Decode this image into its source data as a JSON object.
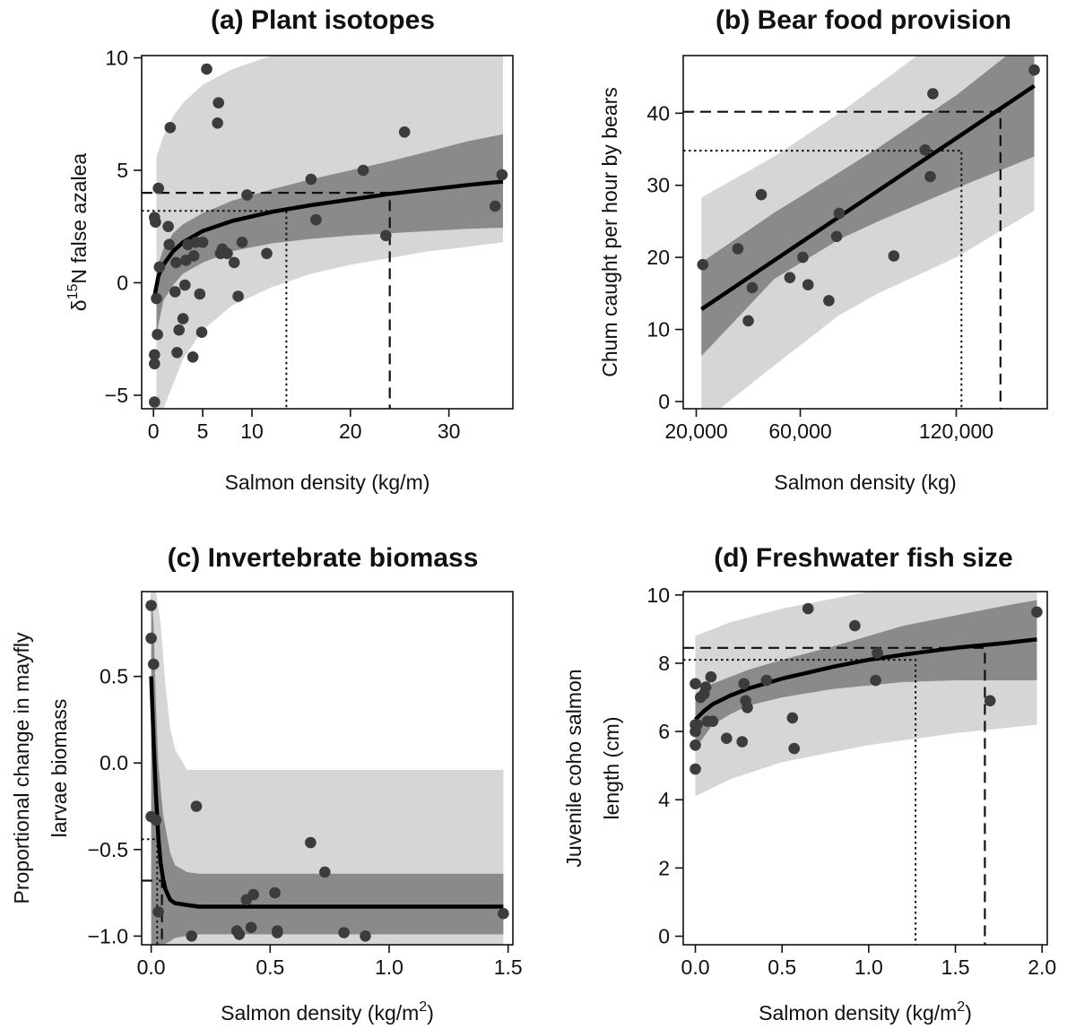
{
  "figure": {
    "background": "#ffffff",
    "colors": {
      "outer_band": "#d6d6d6",
      "inner_band": "#8a8a8a",
      "fit_line": "#000000",
      "points": "#3c3c3c"
    }
  },
  "chart_data": [
    {
      "type": "scatter",
      "panel": "a",
      "title": "(a) Plant isotopes",
      "xlabel": "Salmon density (kg/m)",
      "ylabel": "δ15N false azalea",
      "ylabel_parts": [
        "δ",
        "15",
        "N false azalea"
      ],
      "xlim": [
        -1.2,
        36.5
      ],
      "ylim": [
        -5.6,
        10.1
      ],
      "x_ticks": [
        0,
        5,
        10,
        20,
        30
      ],
      "y_ticks": [
        -5,
        0,
        5,
        10
      ],
      "grid": false,
      "fit": {
        "model": "a + b*log(x)",
        "x": [
          0.1,
          0.5,
          1,
          2,
          3,
          5,
          8,
          12,
          16,
          20,
          24,
          28,
          32,
          35.5
        ],
        "y": [
          -0.6,
          0.3,
          0.8,
          1.4,
          1.8,
          2.3,
          2.75,
          3.15,
          3.45,
          3.7,
          3.95,
          4.15,
          4.35,
          4.5
        ]
      },
      "inner_band": {
        "x": [
          0.3,
          1,
          2,
          3,
          5,
          8,
          12,
          16,
          20,
          24,
          28,
          32,
          35.5
        ],
        "lower": [
          -2.3,
          -0.8,
          -0.1,
          0.4,
          0.9,
          1.4,
          1.75,
          1.95,
          2.1,
          2.2,
          2.3,
          2.4,
          2.45
        ],
        "upper": [
          0.6,
          1.5,
          2.2,
          2.6,
          3.1,
          3.65,
          4.15,
          4.6,
          5.0,
          5.4,
          5.85,
          6.3,
          6.6
        ]
      },
      "outer_band": {
        "x": [
          0.3,
          1,
          2,
          3,
          5,
          8,
          12,
          16,
          20,
          24,
          28,
          32,
          35.5
        ],
        "lower": [
          -5.6,
          -5.6,
          -4.5,
          -3.4,
          -2.1,
          -1.0,
          -0.2,
          0.4,
          0.8,
          1.1,
          1.4,
          1.6,
          1.8
        ],
        "upper": [
          5.6,
          6.5,
          7.4,
          8.0,
          8.8,
          9.5,
          10.1,
          10.1,
          10.1,
          10.1,
          10.1,
          10.1,
          10.1
        ]
      },
      "points": {
        "x": [
          0.1,
          0.1,
          0.1,
          0.1,
          0.2,
          0.3,
          0.4,
          0.5,
          0.6,
          1.5,
          1.6,
          1.7,
          2.2,
          2.3,
          2.4,
          2.6,
          3.0,
          3.2,
          3.3,
          3.5,
          4.0,
          4.1,
          4.3,
          4.7,
          4.9,
          5.0,
          5.4,
          6.5,
          6.6,
          6.8,
          7.0,
          7.5,
          8.2,
          8.6,
          9.0,
          9.5,
          11.5,
          16.0,
          16.5,
          21.3,
          23.6,
          25.5,
          34.7,
          35.4
        ],
        "y": [
          -5.3,
          -3.6,
          -3.2,
          2.9,
          2.7,
          -0.7,
          -2.3,
          4.2,
          0.7,
          2.5,
          1.7,
          6.9,
          -0.4,
          0.9,
          -3.1,
          -2.1,
          -1.6,
          -0.1,
          1.0,
          1.7,
          -3.3,
          1.2,
          1.8,
          -0.5,
          -2.2,
          1.8,
          9.5,
          7.1,
          8.0,
          1.3,
          1.5,
          1.3,
          0.9,
          -0.6,
          1.8,
          3.9,
          1.3,
          4.6,
          2.8,
          5.0,
          2.1,
          6.7,
          3.4,
          4.8
        ]
      },
      "ref_lines": [
        {
          "style": "dashed",
          "x": 24.0,
          "y": 4.0
        },
        {
          "style": "dotted",
          "x": 13.5,
          "y": 3.2
        }
      ]
    },
    {
      "type": "scatter",
      "panel": "b",
      "title": "(b) Bear food provision",
      "xlabel": "Salmon density (kg)",
      "ylabel": "Chum caught per hour by bears",
      "xlim": [
        15000,
        155000
      ],
      "ylim": [
        -1,
        48
      ],
      "x_ticks": [
        20000,
        60000,
        120000
      ],
      "x_tick_labels": [
        "20,000",
        "60,000",
        "120,000"
      ],
      "y_ticks": [
        0,
        10,
        20,
        30,
        40
      ],
      "grid": false,
      "fit": {
        "model": "linear",
        "x": [
          22000,
          150000
        ],
        "y": [
          12.8,
          43.8
        ]
      },
      "inner_band": {
        "x": [
          22000,
          50000,
          75000,
          90000,
          120000,
          150000
        ],
        "lower": [
          6.3,
          17.0,
          22.5,
          25.0,
          29.6,
          34.0
        ],
        "upper": [
          19.3,
          26.2,
          31.8,
          35.2,
          42.5,
          51.0
        ]
      },
      "outer_band": {
        "x": [
          22000,
          50000,
          75000,
          90000,
          120000,
          150000
        ],
        "lower": [
          -3.0,
          5.0,
          12.0,
          15.0,
          20.0,
          26.5
        ],
        "upper": [
          28.3,
          34.0,
          40.0,
          44.0,
          52.0,
          60.0
        ]
      },
      "points": {
        "x": [
          22500,
          36000,
          40000,
          41500,
          45000,
          56000,
          61000,
          63000,
          71000,
          74000,
          75000,
          96000,
          108000,
          110000,
          111000,
          150000
        ],
        "y": [
          19.0,
          21.2,
          11.2,
          15.8,
          28.7,
          17.2,
          20.0,
          16.2,
          14.0,
          22.9,
          26.1,
          20.2,
          34.9,
          31.2,
          42.7,
          46.0
        ]
      },
      "ref_lines": [
        {
          "style": "dashed",
          "x": 137000,
          "y": 40.2
        },
        {
          "style": "dotted",
          "x": 122000,
          "y": 34.8
        }
      ]
    },
    {
      "type": "scatter",
      "panel": "c",
      "title": "(c) Invertebrate biomass",
      "xlabel": "Salmon density (kg/m2)",
      "xlabel_parts": [
        "Salmon density (kg/m",
        "2",
        ")"
      ],
      "ylabel": "Proportional change in mayfly larvae biomass",
      "ylabel_lines": [
        "Proportional change in mayfly",
        "larvae biomass"
      ],
      "xlim": [
        -0.04,
        1.52
      ],
      "ylim": [
        -1.05,
        0.99
      ],
      "x_ticks": [
        0.0,
        0.5,
        1.0,
        1.5
      ],
      "y_ticks": [
        -1.0,
        -0.5,
        0.0,
        0.5
      ],
      "grid": false,
      "fit": {
        "model": "a + b*exp(-c*x)",
        "x": [
          0,
          0.01,
          0.02,
          0.03,
          0.04,
          0.05,
          0.06,
          0.08,
          0.1,
          0.15,
          0.2,
          0.4,
          0.8,
          1.2,
          1.48
        ],
        "y": [
          0.5,
          0.13,
          -0.18,
          -0.43,
          -0.58,
          -0.67,
          -0.73,
          -0.79,
          -0.81,
          -0.82,
          -0.83,
          -0.83,
          -0.83,
          -0.83,
          -0.83
        ]
      },
      "inner_band": {
        "x": [
          0,
          0.01,
          0.02,
          0.03,
          0.05,
          0.08,
          0.1,
          0.15,
          0.2,
          0.4,
          0.8,
          1.48
        ],
        "lower": [
          -1.05,
          -1.05,
          -1.05,
          -1.05,
          -1.05,
          -1.03,
          -1.01,
          -1.0,
          -0.99,
          -0.99,
          -0.99,
          -0.99
        ],
        "upper": [
          0.99,
          0.8,
          0.35,
          0.0,
          -0.3,
          -0.52,
          -0.59,
          -0.63,
          -0.64,
          -0.64,
          -0.64,
          -0.64
        ]
      },
      "outer_band": {
        "x": [
          0,
          0.02,
          0.04,
          0.06,
          0.08,
          0.1,
          0.15,
          1.48
        ],
        "lower": [
          -1.05,
          -1.05,
          -1.05,
          -1.05,
          -1.05,
          -1.05,
          -1.05,
          -1.05
        ],
        "upper": [
          0.99,
          0.99,
          0.8,
          0.45,
          0.2,
          0.08,
          -0.04,
          -0.04
        ]
      },
      "points": {
        "x": [
          0.0,
          0.0,
          0.01,
          0.0,
          0.02,
          0.03,
          0.17,
          0.19,
          0.36,
          0.37,
          0.4,
          0.42,
          0.43,
          0.52,
          0.53,
          0.53,
          0.67,
          0.73,
          0.81,
          0.9,
          1.48
        ],
        "y": [
          0.91,
          0.72,
          0.57,
          -0.31,
          -0.33,
          -0.86,
          -1.0,
          -0.25,
          -0.97,
          -0.99,
          -0.79,
          -0.95,
          -0.76,
          -0.75,
          -0.97,
          -0.98,
          -0.46,
          -0.63,
          -0.98,
          -1.0,
          -0.87
        ]
      },
      "ref_lines": [
        {
          "style": "dashed",
          "x": 0.045,
          "y": -0.68
        },
        {
          "style": "dotted",
          "x": 0.025,
          "y": -0.44
        }
      ]
    },
    {
      "type": "scatter",
      "panel": "d",
      "title": "(d) Freshwater fish size",
      "xlabel": "Salmon density (kg/m2)",
      "xlabel_parts": [
        "Salmon density (kg/m",
        "2",
        ")"
      ],
      "ylabel": "Juvenile coho salmon length (cm)",
      "ylabel_lines": [
        "Juvenile coho salmon",
        "length (cm)"
      ],
      "xlim": [
        -0.07,
        2.03
      ],
      "ylim": [
        -0.25,
        10.1
      ],
      "x_ticks": [
        0.0,
        0.5,
        1.0,
        1.5,
        2.0
      ],
      "y_ticks": [
        0,
        2,
        4,
        6,
        8,
        10
      ],
      "grid": false,
      "fit": {
        "model": "a + b*log(x)",
        "x": [
          0,
          0.05,
          0.1,
          0.2,
          0.3,
          0.5,
          0.8,
          1.0,
          1.2,
          1.5,
          1.8,
          1.97
        ],
        "y": [
          6.35,
          6.6,
          6.8,
          7.05,
          7.25,
          7.55,
          7.9,
          8.1,
          8.25,
          8.45,
          8.6,
          8.7
        ]
      },
      "inner_band": {
        "x": [
          0,
          0.1,
          0.2,
          0.3,
          0.5,
          0.8,
          1.0,
          1.2,
          1.5,
          1.8,
          1.97
        ],
        "lower": [
          5.5,
          6.2,
          6.5,
          6.75,
          7.0,
          7.25,
          7.35,
          7.45,
          7.5,
          7.5,
          7.5
        ],
        "upper": [
          7.1,
          7.4,
          7.6,
          7.8,
          8.1,
          8.5,
          8.8,
          9.1,
          9.4,
          9.7,
          9.85
        ]
      },
      "outer_band": {
        "x": [
          0,
          0.2,
          0.5,
          1.0,
          1.5,
          1.97
        ],
        "lower": [
          4.1,
          4.6,
          5.1,
          5.6,
          5.95,
          6.2
        ],
        "upper": [
          8.8,
          9.2,
          9.6,
          10.1,
          10.1,
          10.1
        ]
      },
      "points": {
        "x": [
          0.0,
          0.0,
          0.0,
          0.0,
          0.0,
          0.01,
          0.03,
          0.05,
          0.06,
          0.07,
          0.09,
          0.1,
          0.18,
          0.27,
          0.28,
          0.29,
          0.3,
          0.41,
          0.56,
          0.57,
          0.65,
          0.92,
          1.04,
          1.05,
          1.7,
          1.97
        ],
        "y": [
          7.4,
          6.2,
          6.0,
          5.6,
          4.9,
          6.2,
          7.0,
          7.1,
          7.3,
          6.3,
          7.6,
          6.3,
          5.8,
          5.7,
          7.4,
          6.9,
          6.7,
          7.5,
          6.4,
          5.5,
          9.6,
          9.1,
          7.5,
          8.3,
          6.9,
          9.5
        ]
      },
      "ref_lines": [
        {
          "style": "dashed",
          "x": 1.67,
          "y": 8.45
        },
        {
          "style": "dotted",
          "x": 1.27,
          "y": 8.1
        }
      ]
    }
  ]
}
